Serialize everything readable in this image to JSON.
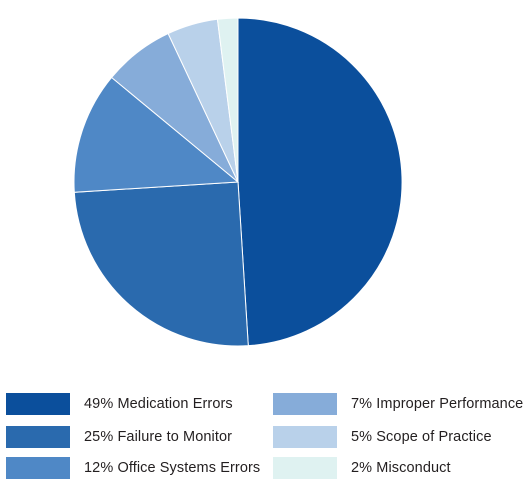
{
  "chart_data": {
    "type": "pie",
    "title": "",
    "start": "12 o'clock, clockwise",
    "slices": [
      {
        "label": "49% Medication Errors",
        "value": 49,
        "color": "#0b4f9c"
      },
      {
        "label": "25% Failure to Monitor",
        "value": 25,
        "color": "#2a6aae"
      },
      {
        "label": "12% Office Systems Errors",
        "value": 12,
        "color": "#4f88c6"
      },
      {
        "label": "7% Improper Performance",
        "value": 7,
        "color": "#86acd9"
      },
      {
        "label": "5% Scope of Practice",
        "value": 5,
        "color": "#b9d1ea"
      },
      {
        "label": "2% Misconduct",
        "value": 2,
        "color": "#dff2f1"
      }
    ],
    "legend": {
      "placement": "bottom",
      "columns": 2
    }
  }
}
